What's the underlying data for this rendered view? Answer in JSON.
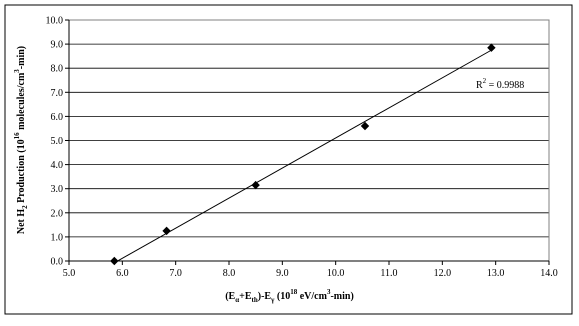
{
  "chart_data": {
    "type": "scatter",
    "title": "",
    "xlabel": {
      "base_open": "(E",
      "sub_alpha": "α",
      "plus": "+E",
      "sub_th": "th",
      "minus": ")-E",
      "sub_gamma": "γ",
      "paren": " (10",
      "exp": "18",
      "unit_a": " eV/cm",
      "unit_exp": "3",
      "unit_b": "-min)"
    },
    "ylabel": {
      "part1": "Net H",
      "sub2": "2",
      "part2": " Production (10",
      "exp16": "16",
      "part3": " molecules/cm",
      "exp3": "3",
      "part4": "-min)"
    },
    "xlim": [
      5.0,
      14.0
    ],
    "ylim": [
      0.0,
      10.0
    ],
    "x_ticks": [
      "5.0",
      "6.0",
      "7.0",
      "8.0",
      "9.0",
      "10.0",
      "11.0",
      "12.0",
      "13.0",
      "14.0"
    ],
    "y_ticks": [
      "0.0",
      "1.0",
      "2.0",
      "3.0",
      "4.0",
      "5.0",
      "6.0",
      "7.0",
      "8.0",
      "9.0",
      "10.0"
    ],
    "grid": "horizontal",
    "legend": "none",
    "series": [
      {
        "x": [
          5.85,
          6.83,
          8.5,
          10.55,
          12.92
        ],
        "y": [
          0.0,
          1.25,
          3.15,
          5.6,
          8.85
        ],
        "marker": "diamond",
        "color": "#000000"
      }
    ],
    "trendline": {
      "type": "linear",
      "x": [
        5.83,
        12.92
      ],
      "y": [
        -0.1,
        8.75
      ]
    },
    "annotation": {
      "r2_label": "R",
      "r2_exp": "2",
      "r2_value": " = 0.9988"
    }
  }
}
